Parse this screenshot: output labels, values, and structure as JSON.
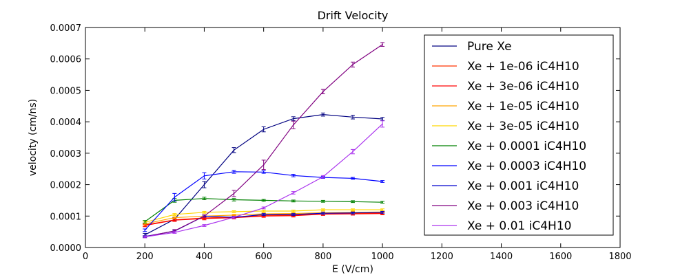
{
  "chart_data": {
    "type": "line",
    "title": "Drift Velocity",
    "xlabel": "E (V/cm)",
    "ylabel": "velocity (cm/ns)",
    "xlim": [
      0,
      1800
    ],
    "ylim": [
      0,
      0.0007
    ],
    "xticks": [
      "0",
      "200",
      "400",
      "600",
      "800",
      "1000",
      "1200",
      "1400",
      "1600",
      "1800"
    ],
    "yticks": [
      "0.0000",
      "0.0001",
      "0.0002",
      "0.0003",
      "0.0004",
      "0.0005",
      "0.0006",
      "0.0007"
    ],
    "grid": false,
    "legend_position": "top-right",
    "x": [
      200,
      300,
      400,
      500,
      600,
      700,
      800,
      900,
      1000
    ],
    "series": [
      {
        "name": "Pure Xe",
        "color": "#000080",
        "values": [
          4e-05,
          9e-05,
          0.0002,
          0.00031,
          0.000376,
          0.00041,
          0.000423,
          0.000415,
          0.000409
        ],
        "errors": [
          5e-06,
          5e-06,
          1e-05,
          8e-06,
          8e-06,
          6e-06,
          5e-06,
          6e-06,
          5e-06
        ]
      },
      {
        "name": "Xe + 1e-06 iC4H10",
        "color": "#ff3300",
        "values": [
          7.2e-05,
          8.8e-05,
          9.4e-05,
          9.7e-05,
          0.000102,
          0.000103,
          0.000107,
          0.000108,
          0.00011
        ],
        "errors": [
          4e-06,
          4e-06,
          4e-06,
          4e-06,
          4e-06,
          4e-06,
          4e-06,
          4e-06,
          4e-06
        ]
      },
      {
        "name": "Xe + 3e-06 iC4H10",
        "color": "#ff0000",
        "values": [
          7e-05,
          8.7e-05,
          9.2e-05,
          9.5e-05,
          0.0001,
          0.000101,
          0.000106,
          0.000107,
          0.000108
        ],
        "errors": [
          4e-06,
          4e-06,
          4e-06,
          4e-06,
          4e-06,
          4e-06,
          4e-06,
          4e-06,
          4e-06
        ]
      },
      {
        "name": "Xe + 1e-05 iC4H10",
        "color": "#ffa500",
        "values": [
          7.5e-05,
          9.5e-05,
          0.0001,
          0.000103,
          0.000107,
          0.000108,
          0.000111,
          0.000112,
          0.000113
        ],
        "errors": [
          3e-06,
          3e-06,
          3e-06,
          3e-06,
          3e-06,
          3e-06,
          3e-06,
          3e-06,
          3e-06
        ]
      },
      {
        "name": "Xe + 3e-05 iC4H10",
        "color": "#ffd700",
        "values": [
          8e-05,
          0.000105,
          0.000112,
          0.000114,
          0.000116,
          0.000116,
          0.00012,
          0.00012,
          0.00012
        ],
        "errors": [
          3e-06,
          3e-06,
          3e-06,
          3e-06,
          3e-06,
          3e-06,
          3e-06,
          3e-06,
          3e-06
        ]
      },
      {
        "name": "Xe + 0.0001 iC4H10",
        "color": "#008000",
        "values": [
          8.2e-05,
          0.00015,
          0.000156,
          0.000152,
          0.00015,
          0.000148,
          0.000147,
          0.000146,
          0.000144
        ],
        "errors": [
          4e-06,
          6e-06,
          4e-06,
          4e-06,
          3e-06,
          3e-06,
          3e-06,
          3e-06,
          3e-06
        ]
      },
      {
        "name": "Xe + 0.0003 iC4H10",
        "color": "#0000ff",
        "values": [
          5.5e-05,
          0.00016,
          0.000228,
          0.000241,
          0.00024,
          0.000229,
          0.000223,
          0.00022,
          0.00021
        ],
        "errors": [
          4e-06,
          1.2e-05,
          1e-05,
          5e-06,
          4e-06,
          4e-06,
          3e-06,
          3e-06,
          3e-06
        ]
      },
      {
        "name": "Xe + 0.001 iC4H10",
        "color": "#0000cd",
        "values": [
          3.5e-05,
          5.2e-05,
          0.0001,
          9.6e-05,
          0.000105,
          0.000105,
          0.000109,
          0.00011,
          0.000112
        ],
        "errors": [
          3e-06,
          3e-06,
          3e-06,
          3e-06,
          3e-06,
          3e-06,
          3e-06,
          3e-06,
          3e-06
        ]
      },
      {
        "name": "Xe + 0.003 iC4H10",
        "color": "#800080",
        "values": [
          3.4e-05,
          5.3e-05,
          0.0001,
          0.000172,
          0.000263,
          0.00039,
          0.000496,
          0.000582,
          0.000646
        ],
        "errors": [
          3e-06,
          4e-06,
          4e-06,
          1e-05,
          1.5e-05,
          1.2e-05,
          7e-06,
          8e-06,
          6e-06
        ]
      },
      {
        "name": "Xe + 0.01 iC4H10",
        "color": "#aa33ee",
        "values": [
          3.4e-05,
          4.8e-05,
          7e-05,
          9.6e-05,
          0.000126,
          0.000174,
          0.000225,
          0.000305,
          0.000393
        ],
        "errors": [
          3e-06,
          3e-06,
          3e-06,
          3e-06,
          3e-06,
          4e-06,
          4e-06,
          7e-06,
          1e-05
        ]
      }
    ]
  }
}
